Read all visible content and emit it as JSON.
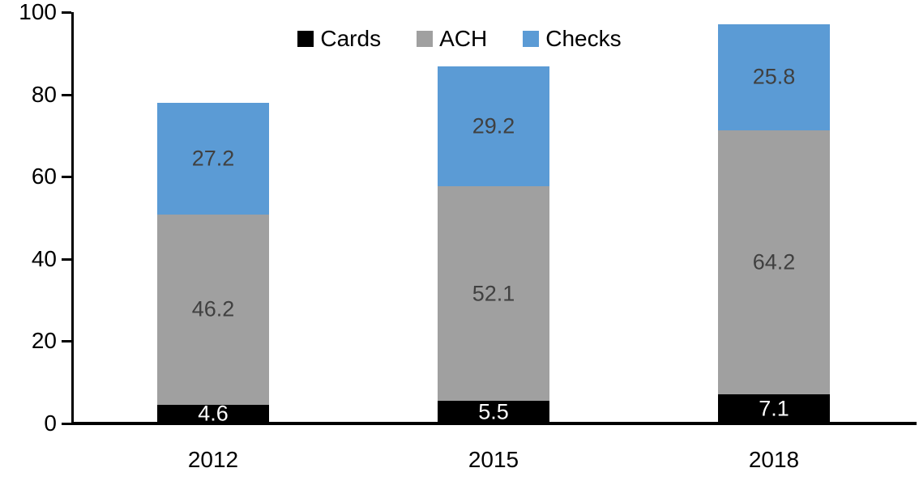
{
  "chart_data": {
    "type": "bar",
    "stacked": true,
    "title": "",
    "xlabel": "",
    "ylabel": "",
    "categories": [
      "2012",
      "2015",
      "2018"
    ],
    "series": [
      {
        "name": "Cards",
        "color": "#000000",
        "label_color": "#ffffff",
        "values": [
          4.6,
          5.5,
          7.1
        ]
      },
      {
        "name": "ACH",
        "color": "#a0a0a0",
        "label_color": "#404040",
        "values": [
          46.2,
          52.1,
          64.2
        ]
      },
      {
        "name": "Checks",
        "color": "#5b9bd5",
        "label_color": "#404040",
        "values": [
          27.2,
          29.2,
          25.8
        ]
      }
    ],
    "totals": [
      78.0,
      86.8,
      97.1
    ],
    "ylim": [
      0,
      100
    ],
    "yticks": [
      0,
      20,
      40,
      60,
      80,
      100
    ],
    "legend_position": "top-center",
    "legend_entries": [
      "Cards",
      "ACH",
      "Checks"
    ],
    "grid": false,
    "axis_color": "#000000"
  }
}
